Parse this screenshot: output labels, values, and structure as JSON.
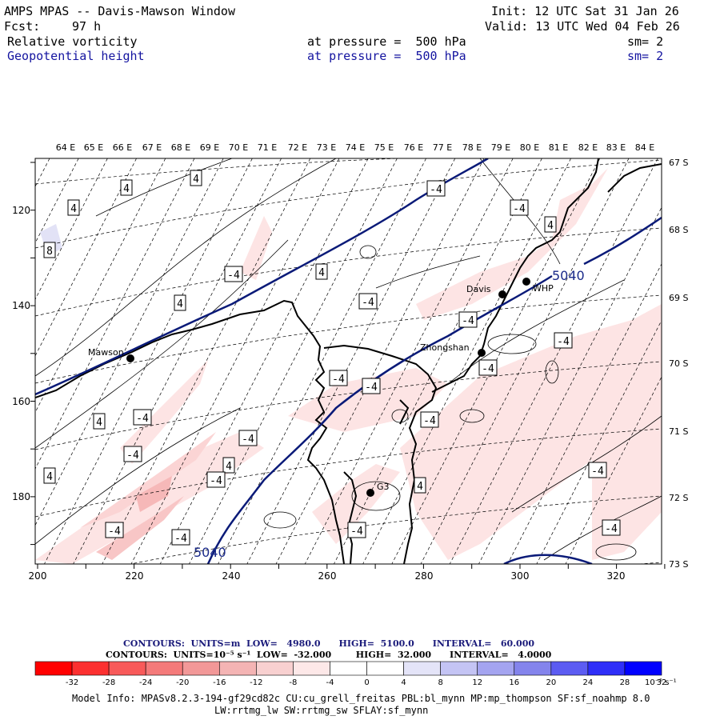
{
  "header": {
    "title": "AMPS MPAS -- Davis-Mawson Window",
    "init": "Init: 12 UTC Sat 31 Jan 26",
    "fcst_label": "Fcst:",
    "fcst_value": "97 h",
    "valid": "Valid: 13 UTC Wed 04 Feb 26",
    "field1": {
      "name": "Relative vorticity",
      "pressure": "at pressure =  500 hPa",
      "sm": "sm= 2"
    },
    "field2": {
      "name": "Geopotential height",
      "pressure": "at pressure =  500 hPa",
      "sm": "sm= 2"
    }
  },
  "map": {
    "top_lon_labels": [
      "64 E",
      "65 E",
      "66 E",
      "67 E",
      "68 E",
      "69 E",
      "70 E",
      "71 E",
      "72 E",
      "73 E",
      "74 E",
      "75 E",
      "76 E",
      "77 E",
      "78 E",
      "79 E",
      "80 E",
      "81 E",
      "82 E",
      "83 E",
      "84 E"
    ],
    "right_lat_labels": [
      "67 S",
      "68 S",
      "69 S",
      "70 S",
      "71 S",
      "72 S",
      "73 S"
    ],
    "left_y_ticks": [
      "120",
      "140",
      "160",
      "180"
    ],
    "bottom_x_ticks": [
      "200",
      "220",
      "240",
      "260",
      "280",
      "300",
      "320"
    ],
    "stations": [
      {
        "name": "Mawson"
      },
      {
        "name": "Davis"
      },
      {
        "name": "WHP"
      },
      {
        "name": "Zhongshan"
      },
      {
        "name": "G3"
      }
    ],
    "height_labels": [
      "5040",
      "5040"
    ],
    "vort_labels": [
      "4",
      "4",
      "4",
      "4",
      "8",
      "-4",
      "4",
      "4",
      "-4",
      "-4",
      "-4",
      "4",
      "-4",
      "-4",
      "-4",
      "-4",
      "4",
      "-4",
      "-4",
      "-4",
      "-4",
      "4",
      "-4",
      "-4",
      "-4",
      "-4",
      "-4",
      "-4",
      "4",
      "-4"
    ],
    "colors": {
      "height_contour": "#0a1a78",
      "negative_fill": "#fde4e4",
      "positive_fill": "#e2e2f6",
      "coast": "#000000"
    }
  },
  "legend": {
    "contours1": "CONTOURS:  UNITS=m  LOW=   4980.0      HIGH=  5100.0      INTERVAL=   60.000",
    "contours2": "CONTOURS:  UNITS=10⁻⁵ s⁻¹  LOW=  -32.000        HIGH=  32.000      INTERVAL=   4.0000",
    "ticks": [
      "-32",
      "-28",
      "-24",
      "-20",
      "-16",
      "-12",
      "-8",
      "-4",
      "0",
      "4",
      "8",
      "12",
      "16",
      "20",
      "24",
      "28",
      "32"
    ],
    "unit": "10⁻⁵ s⁻¹",
    "colors": [
      "#ff0000",
      "#fc3030",
      "#f85a5a",
      "#f47a7a",
      "#f29898",
      "#f4b4b4",
      "#f8d0d0",
      "#fde8e8",
      "#ffffff",
      "#ffffff",
      "#e4e4f8",
      "#c4c4f4",
      "#a4a4f0",
      "#8484ec",
      "#5c5cf2",
      "#2e2ef8",
      "#0000ff"
    ]
  },
  "model_info": {
    "line1": "Model Info: MPASv8.2.3-194-gf29cd82c CU:cu_grell_freitas PBL:bl_mynn MP:mp_thompson SF:sf_noahmp 8.0",
    "line2": "LW:rrtmg_lw SW:rrtmg_sw SFLAY:sf_mynn"
  }
}
